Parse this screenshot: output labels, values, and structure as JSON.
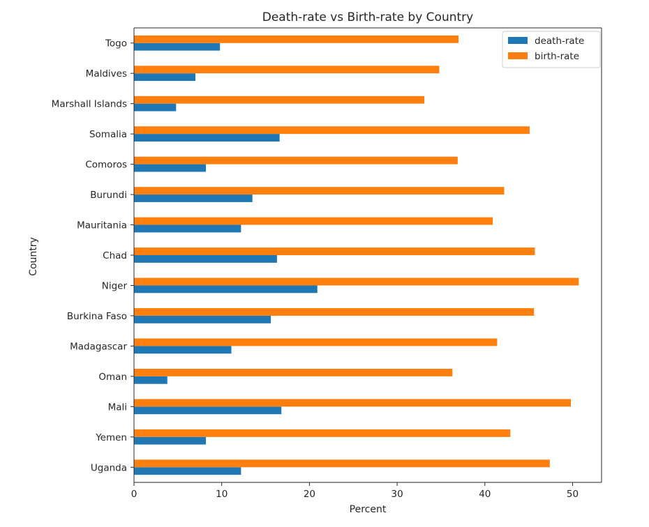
{
  "chart_data": {
    "type": "bar",
    "orientation": "horizontal",
    "title": "Death-rate vs Birth-rate by Country",
    "xlabel": "Percent",
    "ylabel": "Country",
    "xlim": [
      0,
      53.3
    ],
    "xticks": [
      0,
      10,
      20,
      30,
      40,
      50
    ],
    "grid": false,
    "legend_position": "top-right",
    "categories": [
      "Togo",
      "Maldives",
      "Marshall Islands",
      "Somalia",
      "Comoros",
      "Burundi",
      "Mauritania",
      "Chad",
      "Niger",
      "Burkina Faso",
      "Madagascar",
      "Oman",
      "Mali",
      "Yemen",
      "Uganda"
    ],
    "series": [
      {
        "name": "death-rate",
        "color": "#1f77b4",
        "values": [
          9.8,
          7.0,
          4.8,
          16.6,
          8.2,
          13.5,
          12.2,
          16.3,
          20.9,
          15.6,
          11.1,
          3.8,
          16.8,
          8.2,
          12.2
        ]
      },
      {
        "name": "birth-rate",
        "color": "#ff7f0e",
        "values": [
          37.0,
          34.8,
          33.1,
          45.1,
          36.9,
          42.2,
          40.9,
          45.7,
          50.7,
          45.6,
          41.4,
          36.3,
          49.8,
          42.9,
          47.4
        ]
      }
    ]
  }
}
